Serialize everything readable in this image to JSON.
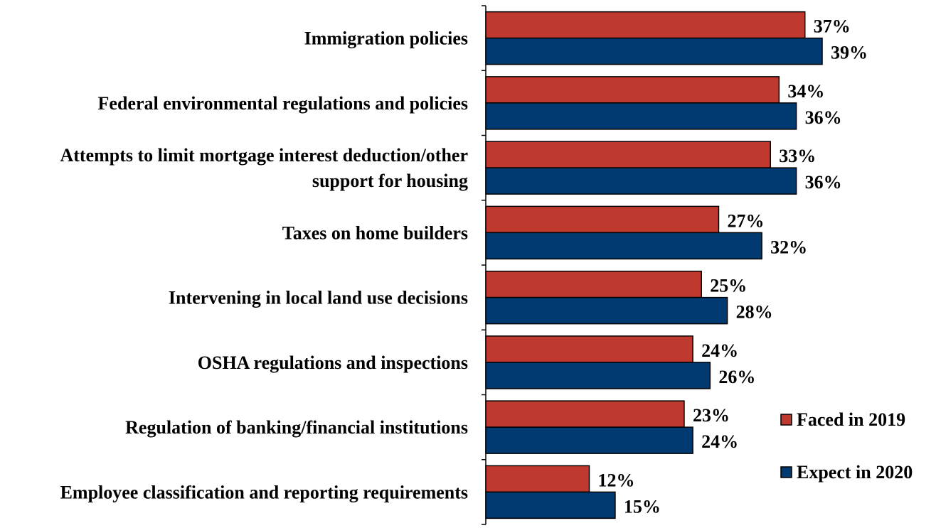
{
  "chart_data": {
    "type": "bar",
    "orientation": "horizontal",
    "categories": [
      "Immigration policies",
      "Federal environmental regulations and policies",
      "Attempts to limit mortgage interest deduction/other support for housing",
      "Taxes on home builders",
      "Intervening in local land use decisions",
      "OSHA regulations and inspections",
      "Regulation of banking/financial institutions",
      "Employee classification and reporting requirements"
    ],
    "category_lines": [
      [
        "Immigration policies"
      ],
      [
        "Federal environmental regulations and policies"
      ],
      [
        "Attempts to limit mortgage interest deduction/other",
        "support for housing"
      ],
      [
        "Taxes on home builders"
      ],
      [
        "Intervening in local land use decisions"
      ],
      [
        "OSHA regulations and inspections"
      ],
      [
        "Regulation of banking/financial institutions"
      ],
      [
        "Employee classification and reporting requirements"
      ]
    ],
    "series": [
      {
        "name": "Faced in 2019",
        "color": "#c0392f",
        "values": [
          37,
          34,
          33,
          27,
          25,
          24,
          23,
          12
        ],
        "labels": [
          "37%",
          "34%",
          "33%",
          "27%",
          "25%",
          "24%",
          "23%",
          "12%"
        ]
      },
      {
        "name": "Expect in 2020",
        "color": "#003a70",
        "values": [
          39,
          36,
          36,
          32,
          28,
          26,
          24,
          15
        ],
        "labels": [
          "39%",
          "36%",
          "36%",
          "32%",
          "28%",
          "26%",
          "24%",
          "15%"
        ]
      }
    ],
    "xlim": [
      0,
      45
    ],
    "grid": false,
    "legend": "right"
  }
}
